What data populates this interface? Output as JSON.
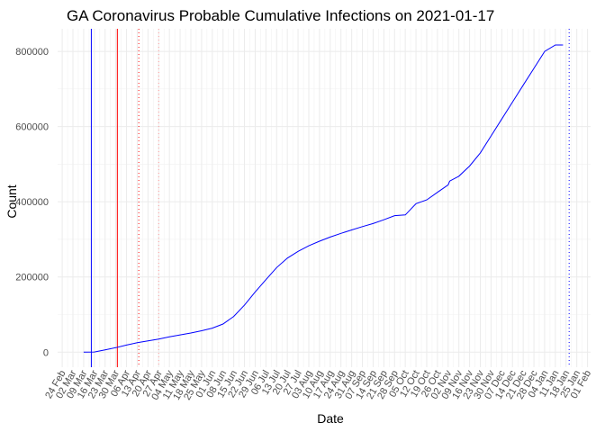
{
  "chart_data": {
    "type": "line",
    "title": "GA Coronavirus Probable Cumulative Infections on 2021-01-17",
    "xlabel": "Date",
    "ylabel": "Count",
    "ylim": [
      -40000,
      860000
    ],
    "yticks": [
      0,
      200000,
      400000,
      600000,
      800000
    ],
    "ytick_labels": [
      "0",
      "200000",
      "400000",
      "600000",
      "800000"
    ],
    "xtick_labels": [
      "24 Feb",
      "02 Mar",
      "09 Mar",
      "16 Mar",
      "23 Mar",
      "30 Mar",
      "06 Apr",
      "13 Apr",
      "20 Apr",
      "27 Apr",
      "04 May",
      "11 May",
      "18 May",
      "25 May",
      "01 Jun",
      "08 Jun",
      "15 Jun",
      "22 Jun",
      "29 Jun",
      "06 Jul",
      "13 Jul",
      "20 Jul",
      "27 Jul",
      "03 Aug",
      "10 Aug",
      "17 Aug",
      "24 Aug",
      "31 Aug",
      "07 Sep",
      "14 Sep",
      "21 Sep",
      "28 Sep",
      "05 Oct",
      "12 Oct",
      "19 Oct",
      "26 Oct",
      "02 Nov",
      "09 Nov",
      "16 Nov",
      "23 Nov",
      "30 Nov",
      "07 Dec",
      "14 Dec",
      "21 Dec",
      "28 Dec",
      "04 Jan",
      "11 Jan",
      "18 Jan",
      "25 Jan",
      "01 Feb"
    ],
    "x_range_days": [
      -3,
      345
    ],
    "x_origin": "2020-02-24",
    "grid": true,
    "series": [
      {
        "name": "Probable cumulative infections",
        "color": "#0000ff",
        "x_days": [
          14,
          21,
          28,
          35,
          42,
          49,
          56,
          63,
          70,
          77,
          84,
          91,
          98,
          105,
          112,
          119,
          126,
          133,
          140,
          147,
          154,
          161,
          168,
          175,
          182,
          189,
          196,
          203,
          210,
          217,
          224,
          231,
          238,
          245,
          252,
          253,
          259,
          266,
          273,
          280,
          287,
          294,
          301,
          308,
          315,
          322,
          327
        ],
        "values": [
          0,
          500,
          6000,
          12000,
          19000,
          25000,
          30000,
          35000,
          41000,
          46000,
          51000,
          57000,
          64000,
          75000,
          95000,
          125000,
          160000,
          193000,
          225000,
          250000,
          268000,
          283000,
          295000,
          306000,
          316000,
          325000,
          334000,
          342000,
          352000,
          363000,
          365000,
          395000,
          405000,
          425000,
          445000,
          455000,
          468000,
          495000,
          530000,
          575000,
          620000,
          665000,
          710000,
          755000,
          800000,
          817000,
          817000
        ]
      }
    ],
    "vlines": [
      {
        "x_days": 19,
        "color": "#0000ff",
        "style": "solid"
      },
      {
        "x_days": 36,
        "color": "#ff0000",
        "style": "solid"
      },
      {
        "x_days": 50,
        "color": "#ff0000",
        "style": "dotted"
      },
      {
        "x_days": 63,
        "color": "#ff9999",
        "style": "dotted"
      },
      {
        "x_days": 331,
        "color": "#0000ff",
        "style": "dotted"
      }
    ]
  }
}
